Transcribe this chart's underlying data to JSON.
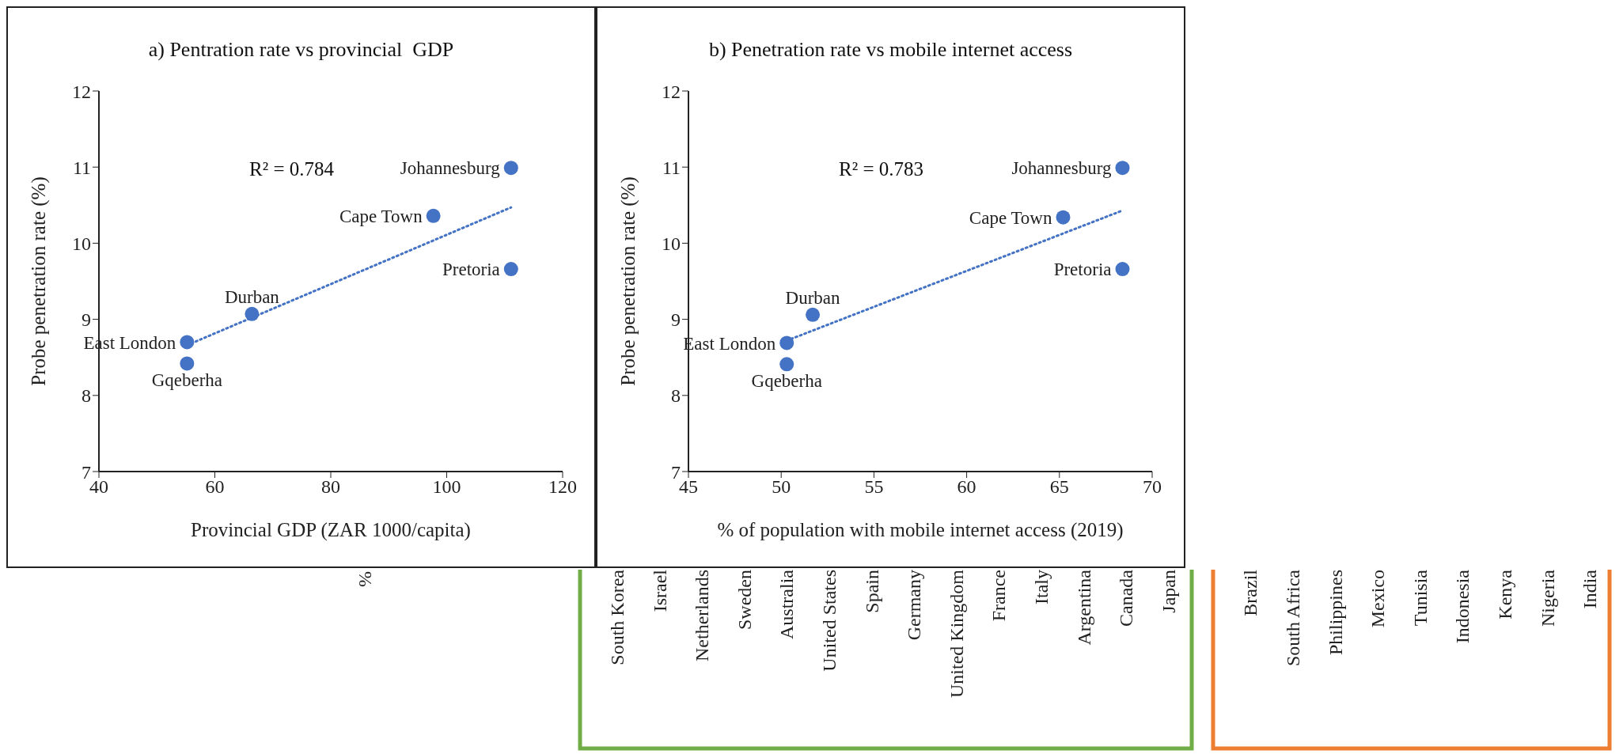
{
  "chart_data": [
    {
      "type": "scatter",
      "title": "a) Pentration rate vs provincial  GDP",
      "xlabel": "Provincial GDP (ZAR 1000/capita)",
      "ylabel": "Probe penetration rate (%)",
      "xlim": [
        40,
        120
      ],
      "xticks": [
        40,
        60,
        80,
        100,
        120
      ],
      "ylim": [
        7,
        12
      ],
      "yticks": [
        7,
        8,
        9,
        10,
        11,
        12
      ],
      "grid": false,
      "marker": "circle",
      "series": [
        {
          "type": "scatter",
          "color": "#4472c4",
          "x": [
            111.1,
            97.7,
            111.1,
            66.4,
            55.2,
            55.2
          ],
          "values": [
            10.99,
            10.36,
            9.66,
            9.07,
            8.7,
            8.42
          ]
        },
        {
          "type": "line",
          "color": "#4472c4",
          "line_style": "dotted",
          "marker": "none",
          "x": [
            55.2,
            111.1
          ],
          "values": [
            8.66,
            10.47
          ]
        }
      ],
      "annotations": [
        {
          "text": "Johannesburg",
          "x": 111.1,
          "y": 10.99
        },
        {
          "text": "Cape Town",
          "x": 97.7,
          "y": 10.36
        },
        {
          "text": "Pretoria",
          "x": 111.1,
          "y": 9.66
        },
        {
          "text": "Durban",
          "x": 66.4,
          "y": 9.07
        },
        {
          "text": "East London",
          "x": 55.2,
          "y": 8.7
        },
        {
          "text": "Gqeberha",
          "x": 55.2,
          "y": 8.42
        },
        "R² = 0.784"
      ]
    },
    {
      "type": "scatter",
      "title": "b) Penetration rate vs mobile internet access",
      "xlabel": "% of population with mobile internet access (2019)",
      "ylabel": "Probe penetration rate (%)",
      "xlim": [
        45,
        70
      ],
      "xticks": [
        45,
        50,
        55,
        60,
        65,
        70
      ],
      "ylim": [
        7,
        12
      ],
      "yticks": [
        7,
        8,
        9,
        10,
        11,
        12
      ],
      "grid": false,
      "marker": "circle",
      "series": [
        {
          "type": "scatter",
          "color": "#4472c4",
          "x": [
            68.4,
            65.2,
            68.4,
            51.7,
            50.3,
            50.3
          ],
          "values": [
            10.99,
            10.34,
            9.66,
            9.06,
            8.69,
            8.41
          ]
        },
        {
          "type": "line",
          "color": "#4472c4",
          "line_style": "dotted",
          "marker": "none",
          "x": [
            50.3,
            68.4
          ],
          "values": [
            8.72,
            10.43
          ]
        }
      ],
      "annotations": [
        {
          "text": "Johannesburg",
          "x": 68.4,
          "y": 10.99
        },
        {
          "text": "Cape Town",
          "x": 65.2,
          "y": 10.34
        },
        {
          "text": "Pretoria",
          "x": 68.4,
          "y": 9.66
        },
        {
          "text": "Durban",
          "x": 51.7,
          "y": 9.06
        },
        {
          "text": "East London",
          "x": 50.3,
          "y": 8.69
        },
        {
          "text": "Gqeberha",
          "x": 50.3,
          "y": 8.41
        },
        "R² = 0.783"
      ]
    },
    {
      "type": "other",
      "ylabel": "%",
      "categories": [
        "South Korea",
        "Israel",
        "Netherlands",
        "Sweden",
        "Australia",
        "United States",
        "Spain",
        "Germany",
        "United Kingdom",
        "France",
        "Italy",
        "Argentina",
        "Canada",
        "Japan",
        "Brazil",
        "South Africa",
        "Philippines",
        "Mexico",
        "Tunisia",
        "Indonesia",
        "Kenya",
        "Nigeria",
        "India"
      ]
    }
  ]
}
